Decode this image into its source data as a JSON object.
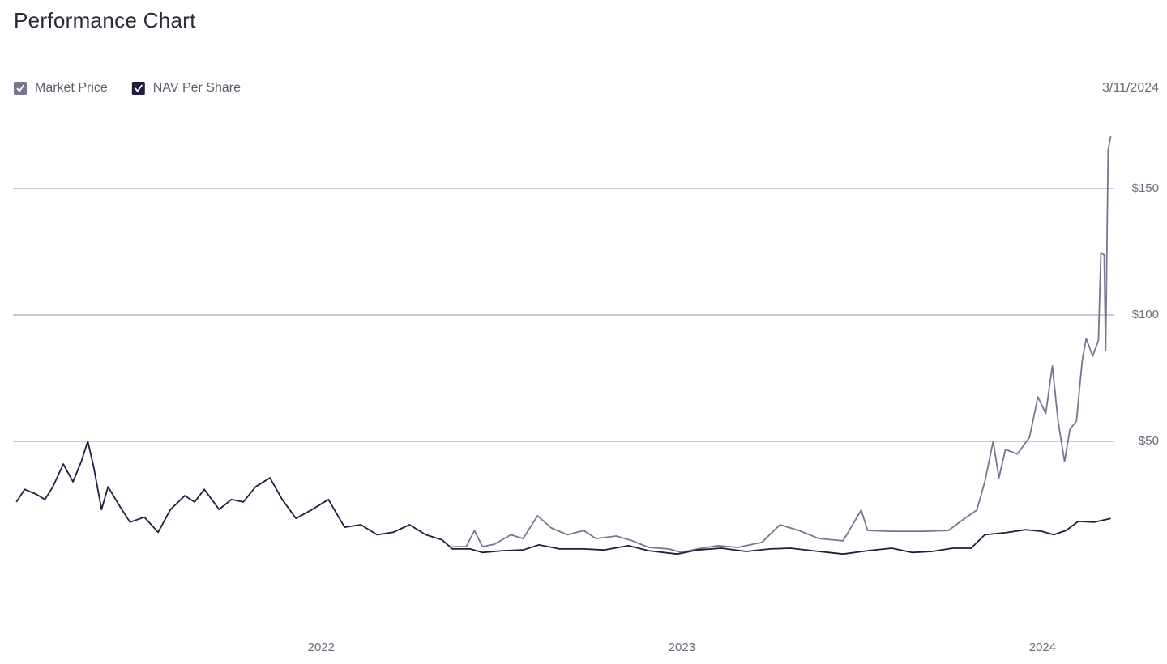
{
  "chart_data": {
    "type": "line",
    "title": "Performance Chart",
    "date_label": "3/11/2024",
    "xlim": [
      2021.15,
      2024.19
    ],
    "xticks": [
      2022,
      2023,
      2024
    ],
    "ylim": [
      -25,
      175
    ],
    "yticks": [
      {
        "value": 50,
        "label": "$50"
      },
      {
        "value": 100,
        "label": "$100"
      },
      {
        "value": 150,
        "label": "$150"
      }
    ],
    "grid": true,
    "legend": "top-left",
    "series": [
      {
        "name": "Market Price",
        "color": "#7b7390",
        "x": [
          2022.364,
          2022.402,
          2022.425,
          2022.447,
          2022.481,
          2022.526,
          2022.56,
          2022.6,
          2022.638,
          2022.683,
          2022.728,
          2022.762,
          2022.818,
          2022.863,
          2022.908,
          2022.964,
          2022.998,
          2023.043,
          2023.099,
          2023.155,
          2023.222,
          2023.272,
          2023.324,
          2023.38,
          2023.447,
          2023.497,
          2023.515,
          2023.582,
          2023.672,
          2023.739,
          2023.784,
          2023.818,
          2023.84,
          2023.863,
          2023.879,
          2023.897,
          2023.93,
          2023.964,
          2023.987,
          2024.009,
          2024.027,
          2024.043,
          2024.061,
          2024.076,
          2024.094,
          2024.11,
          2024.121,
          2024.139,
          2024.155,
          2024.162,
          2024.171,
          2024.175,
          2024.182,
          2024.189
        ],
        "values": [
          8.3,
          8.3,
          14.7,
          8.3,
          9.3,
          13,
          11.5,
          20.5,
          15.7,
          13,
          14.7,
          11.5,
          12.5,
          10.6,
          8,
          7.4,
          6,
          7.4,
          8.7,
          8,
          10,
          17,
          14.7,
          11.5,
          10.6,
          22.8,
          14.7,
          14.4,
          14.4,
          14.7,
          19.5,
          22.8,
          34,
          50,
          35.5,
          46.8,
          45,
          51.6,
          67.6,
          61,
          79.8,
          58,
          42,
          54.8,
          58,
          82,
          90.7,
          83.7,
          90,
          124.7,
          123.7,
          86,
          165.4,
          170.8
        ]
      },
      {
        "name": "NAV Per Share",
        "color": "#231c3f",
        "x": [
          2021.155,
          2021.178,
          2021.211,
          2021.234,
          2021.256,
          2021.285,
          2021.312,
          2021.335,
          2021.353,
          2021.369,
          2021.391,
          2021.409,
          2021.443,
          2021.47,
          2021.51,
          2021.548,
          2021.582,
          2021.622,
          2021.649,
          2021.676,
          2021.717,
          2021.751,
          2021.784,
          2021.818,
          2021.858,
          2021.892,
          2021.93,
          2021.975,
          2022.02,
          2022.065,
          2022.11,
          2022.155,
          2022.2,
          2022.245,
          2022.29,
          2022.335,
          2022.364,
          2022.413,
          2022.447,
          2022.503,
          2022.56,
          2022.604,
          2022.661,
          2022.728,
          2022.784,
          2022.852,
          2022.908,
          2022.987,
          2023.043,
          2023.11,
          2023.178,
          2023.245,
          2023.301,
          2023.38,
          2023.447,
          2023.515,
          2023.582,
          2023.638,
          2023.694,
          2023.751,
          2023.802,
          2023.84,
          2023.897,
          2023.953,
          2023.998,
          2024.031,
          2024.065,
          2024.099,
          2024.144,
          2024.189
        ],
        "values": [
          26,
          31,
          29,
          27,
          32,
          41,
          34,
          42,
          50,
          40,
          23,
          32,
          24,
          18,
          20,
          14,
          23,
          28.5,
          26,
          31,
          23,
          27,
          26,
          32,
          35.5,
          27,
          19.5,
          23,
          27,
          16,
          17,
          13,
          14,
          17,
          13,
          11,
          7.4,
          7.4,
          6,
          6.7,
          7,
          9,
          7.4,
          7.4,
          7,
          8.7,
          6.7,
          5.4,
          7,
          7.7,
          6.4,
          7.4,
          7.7,
          6.4,
          5.4,
          6.7,
          7.7,
          6,
          6.4,
          7.7,
          7.7,
          13,
          13.8,
          15,
          14.4,
          13,
          14.7,
          18.3,
          18,
          19.5
        ]
      }
    ]
  }
}
